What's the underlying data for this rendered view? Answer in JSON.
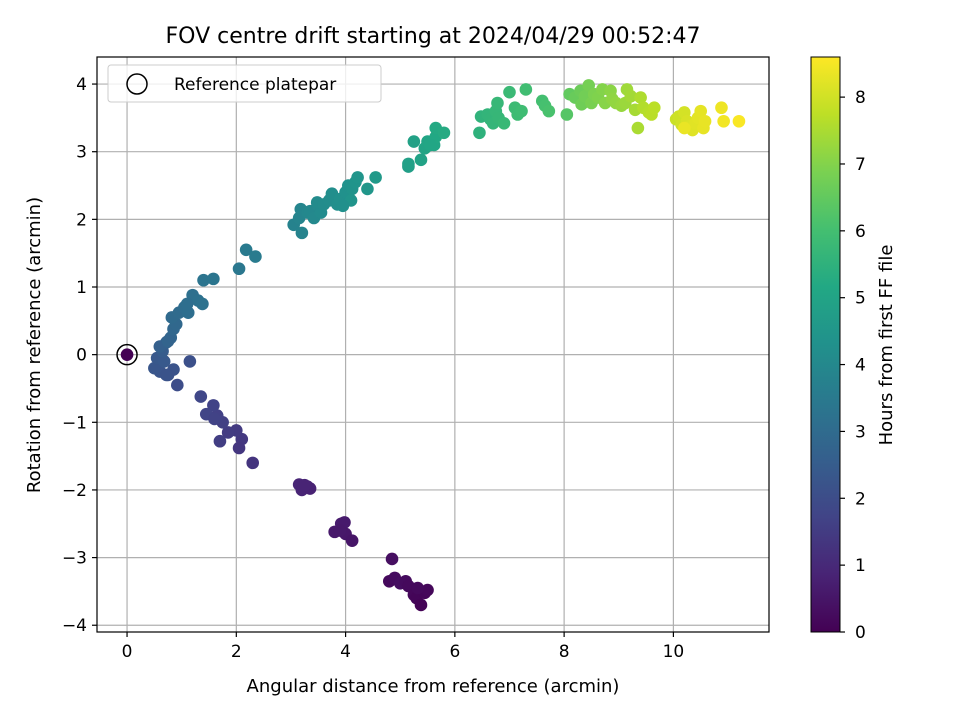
{
  "chart_data": {
    "type": "scatter",
    "title": "FOV centre drift starting at 2024/04/29 00:52:47",
    "xlabel": "Angular distance from reference (arcmin)",
    "ylabel": "Rotation from reference (arcmin)",
    "xlim": [
      -0.55,
      11.75
    ],
    "ylim": [
      -4.1,
      4.4
    ],
    "xticks": [
      0,
      2,
      4,
      6,
      8,
      10
    ],
    "yticks": [
      -4,
      -3,
      -2,
      -1,
      0,
      1,
      2,
      3,
      4
    ],
    "grid": true,
    "legend": {
      "position": "top-left",
      "entries": [
        "Reference platepar"
      ]
    },
    "reference_point": {
      "x": 0,
      "y": 0
    },
    "colorbar": {
      "label": "Hours from first FF file",
      "range": [
        0,
        8.6
      ],
      "ticks": [
        0,
        1,
        2,
        3,
        4,
        5,
        6,
        7,
        8
      ],
      "colormap": "viridis"
    },
    "points": [
      {
        "x": 0,
        "y": 0,
        "h": 0
      },
      {
        "x": 4.85,
        "y": -3.02,
        "h": 0.35
      },
      {
        "x": 4.8,
        "y": -3.35,
        "h": 0.2
      },
      {
        "x": 4.9,
        "y": -3.3,
        "h": 0.25
      },
      {
        "x": 5.0,
        "y": -3.38,
        "h": 0.3
      },
      {
        "x": 5.1,
        "y": -3.35,
        "h": 0.25
      },
      {
        "x": 5.15,
        "y": -3.42,
        "h": 0.2
      },
      {
        "x": 5.25,
        "y": -3.55,
        "h": 0.15
      },
      {
        "x": 5.3,
        "y": -3.6,
        "h": 0.1
      },
      {
        "x": 5.38,
        "y": -3.7,
        "h": 0.05
      },
      {
        "x": 5.45,
        "y": -3.52,
        "h": 0.1
      },
      {
        "x": 5.5,
        "y": -3.48,
        "h": 0.15
      },
      {
        "x": 5.32,
        "y": -3.45,
        "h": 0.2
      },
      {
        "x": 3.8,
        "y": -2.62,
        "h": 0.6
      },
      {
        "x": 3.92,
        "y": -2.5,
        "h": 0.65
      },
      {
        "x": 3.98,
        "y": -2.48,
        "h": 0.62
      },
      {
        "x": 4.0,
        "y": -2.65,
        "h": 0.55
      },
      {
        "x": 4.12,
        "y": -2.75,
        "h": 0.5
      },
      {
        "x": 3.9,
        "y": -2.6,
        "h": 0.58
      },
      {
        "x": 3.15,
        "y": -1.92,
        "h": 0.9
      },
      {
        "x": 3.2,
        "y": -2.0,
        "h": 0.85
      },
      {
        "x": 3.3,
        "y": -1.95,
        "h": 0.88
      },
      {
        "x": 3.35,
        "y": -1.98,
        "h": 0.82
      },
      {
        "x": 3.25,
        "y": -1.93,
        "h": 0.86
      },
      {
        "x": 2.3,
        "y": -1.6,
        "h": 1.3
      },
      {
        "x": 2.1,
        "y": -1.25,
        "h": 1.4
      },
      {
        "x": 2.0,
        "y": -1.12,
        "h": 1.45
      },
      {
        "x": 2.05,
        "y": -1.38,
        "h": 1.35
      },
      {
        "x": 1.85,
        "y": -1.15,
        "h": 1.5
      },
      {
        "x": 1.7,
        "y": -1.28,
        "h": 1.55
      },
      {
        "x": 1.75,
        "y": -1.0,
        "h": 1.6
      },
      {
        "x": 1.65,
        "y": -0.9,
        "h": 1.65
      },
      {
        "x": 1.58,
        "y": -0.75,
        "h": 1.7
      },
      {
        "x": 1.45,
        "y": -0.88,
        "h": 1.75
      },
      {
        "x": 1.35,
        "y": -0.62,
        "h": 1.8
      },
      {
        "x": 1.6,
        "y": -0.95,
        "h": 1.68
      },
      {
        "x": 0.92,
        "y": -0.45,
        "h": 2.0
      },
      {
        "x": 1.15,
        "y": -0.1,
        "h": 2.1
      },
      {
        "x": 0.85,
        "y": -0.22,
        "h": 2.2
      },
      {
        "x": 0.75,
        "y": -0.3,
        "h": 2.15
      },
      {
        "x": 0.6,
        "y": -0.25,
        "h": 2.25
      },
      {
        "x": 0.5,
        "y": -0.2,
        "h": 2.3
      },
      {
        "x": 0.55,
        "y": -0.05,
        "h": 2.35
      },
      {
        "x": 0.68,
        "y": -0.1,
        "h": 2.4
      },
      {
        "x": 0.72,
        "y": -0.3,
        "h": 2.2
      },
      {
        "x": 0.65,
        "y": 0.05,
        "h": 2.5
      },
      {
        "x": 0.72,
        "y": 0.18,
        "h": 2.7
      },
      {
        "x": 0.8,
        "y": 0.25,
        "h": 2.8
      },
      {
        "x": 0.85,
        "y": 0.38,
        "h": 2.85
      },
      {
        "x": 0.9,
        "y": 0.45,
        "h": 2.9
      },
      {
        "x": 0.82,
        "y": 0.55,
        "h": 2.95
      },
      {
        "x": 0.95,
        "y": 0.62,
        "h": 3.0
      },
      {
        "x": 1.05,
        "y": 0.7,
        "h": 3.05
      },
      {
        "x": 1.12,
        "y": 0.62,
        "h": 3.1
      },
      {
        "x": 1.2,
        "y": 0.88,
        "h": 3.15
      },
      {
        "x": 1.3,
        "y": 0.8,
        "h": 3.2
      },
      {
        "x": 1.38,
        "y": 0.75,
        "h": 3.22
      },
      {
        "x": 1.4,
        "y": 1.1,
        "h": 3.3
      },
      {
        "x": 1.58,
        "y": 1.12,
        "h": 3.35
      },
      {
        "x": 1.1,
        "y": 0.75,
        "h": 3.1
      },
      {
        "x": 0.6,
        "y": 0.12,
        "h": 2.6
      },
      {
        "x": 0.75,
        "y": 0.2,
        "h": 2.75
      },
      {
        "x": 2.05,
        "y": 1.27,
        "h": 3.4
      },
      {
        "x": 2.18,
        "y": 1.55,
        "h": 3.5
      },
      {
        "x": 2.35,
        "y": 1.45,
        "h": 3.55
      },
      {
        "x": 3.05,
        "y": 1.92,
        "h": 3.8
      },
      {
        "x": 3.15,
        "y": 2.02,
        "h": 3.85
      },
      {
        "x": 3.2,
        "y": 1.8,
        "h": 3.82
      },
      {
        "x": 3.18,
        "y": 2.15,
        "h": 3.9
      },
      {
        "x": 3.3,
        "y": 2.1,
        "h": 3.95
      },
      {
        "x": 3.35,
        "y": 2.12,
        "h": 4.0
      },
      {
        "x": 3.42,
        "y": 2.02,
        "h": 4.02
      },
      {
        "x": 3.5,
        "y": 2.2,
        "h": 4.05
      },
      {
        "x": 3.55,
        "y": 2.1,
        "h": 4.08
      },
      {
        "x": 3.48,
        "y": 2.25,
        "h": 4.1
      },
      {
        "x": 3.6,
        "y": 2.22,
        "h": 4.12
      },
      {
        "x": 3.7,
        "y": 2.28,
        "h": 4.15
      },
      {
        "x": 3.75,
        "y": 2.38,
        "h": 4.2
      },
      {
        "x": 3.85,
        "y": 2.22,
        "h": 4.22
      },
      {
        "x": 3.9,
        "y": 2.3,
        "h": 4.25
      },
      {
        "x": 4.0,
        "y": 2.4,
        "h": 4.3
      },
      {
        "x": 4.05,
        "y": 2.5,
        "h": 4.35
      },
      {
        "x": 4.12,
        "y": 2.45,
        "h": 4.38
      },
      {
        "x": 4.18,
        "y": 2.55,
        "h": 4.42
      },
      {
        "x": 4.22,
        "y": 2.62,
        "h": 4.45
      },
      {
        "x": 4.1,
        "y": 2.28,
        "h": 4.4
      },
      {
        "x": 4.4,
        "y": 2.45,
        "h": 4.5
      },
      {
        "x": 4.55,
        "y": 2.62,
        "h": 4.6
      },
      {
        "x": 3.95,
        "y": 2.2,
        "h": 4.28
      },
      {
        "x": 5.15,
        "y": 2.78,
        "h": 4.8
      },
      {
        "x": 5.15,
        "y": 2.82,
        "h": 4.85
      },
      {
        "x": 5.25,
        "y": 3.15,
        "h": 4.9
      },
      {
        "x": 5.38,
        "y": 2.88,
        "h": 4.95
      },
      {
        "x": 5.45,
        "y": 3.05,
        "h": 5.0
      },
      {
        "x": 5.5,
        "y": 3.15,
        "h": 5.05
      },
      {
        "x": 5.62,
        "y": 3.1,
        "h": 5.1
      },
      {
        "x": 5.65,
        "y": 3.22,
        "h": 5.15
      },
      {
        "x": 5.65,
        "y": 3.35,
        "h": 5.2
      },
      {
        "x": 5.8,
        "y": 3.28,
        "h": 5.25
      },
      {
        "x": 5.55,
        "y": 3.1,
        "h": 5.08
      },
      {
        "x": 6.45,
        "y": 3.28,
        "h": 5.5
      },
      {
        "x": 6.48,
        "y": 3.52,
        "h": 5.55
      },
      {
        "x": 6.6,
        "y": 3.55,
        "h": 5.6
      },
      {
        "x": 6.65,
        "y": 3.48,
        "h": 5.62
      },
      {
        "x": 6.7,
        "y": 3.42,
        "h": 5.65
      },
      {
        "x": 6.75,
        "y": 3.6,
        "h": 5.68
      },
      {
        "x": 6.8,
        "y": 3.5,
        "h": 5.7
      },
      {
        "x": 6.78,
        "y": 3.72,
        "h": 5.72
      },
      {
        "x": 6.9,
        "y": 3.42,
        "h": 5.75
      },
      {
        "x": 7.0,
        "y": 3.88,
        "h": 5.8
      },
      {
        "x": 7.1,
        "y": 3.65,
        "h": 5.85
      },
      {
        "x": 7.15,
        "y": 3.55,
        "h": 5.88
      },
      {
        "x": 7.22,
        "y": 3.6,
        "h": 5.9
      },
      {
        "x": 7.3,
        "y": 3.92,
        "h": 5.95
      },
      {
        "x": 7.6,
        "y": 3.75,
        "h": 6.0
      },
      {
        "x": 7.65,
        "y": 3.68,
        "h": 6.05
      },
      {
        "x": 7.72,
        "y": 3.6,
        "h": 6.1
      },
      {
        "x": 8.05,
        "y": 3.55,
        "h": 6.3
      },
      {
        "x": 8.1,
        "y": 3.85,
        "h": 6.5
      },
      {
        "x": 8.2,
        "y": 3.8,
        "h": 6.6
      },
      {
        "x": 8.3,
        "y": 3.9,
        "h": 6.65
      },
      {
        "x": 8.32,
        "y": 3.7,
        "h": 6.7
      },
      {
        "x": 8.38,
        "y": 3.82,
        "h": 6.75
      },
      {
        "x": 8.45,
        "y": 3.98,
        "h": 6.8
      },
      {
        "x": 8.5,
        "y": 3.72,
        "h": 6.85
      },
      {
        "x": 8.55,
        "y": 3.85,
        "h": 6.9
      },
      {
        "x": 8.62,
        "y": 3.8,
        "h": 6.95
      },
      {
        "x": 8.7,
        "y": 3.92,
        "h": 7.0
      },
      {
        "x": 8.75,
        "y": 3.72,
        "h": 7.05
      },
      {
        "x": 8.85,
        "y": 3.9,
        "h": 7.1
      },
      {
        "x": 8.88,
        "y": 3.78,
        "h": 7.15
      },
      {
        "x": 8.95,
        "y": 3.72,
        "h": 7.2
      },
      {
        "x": 9.05,
        "y": 3.68,
        "h": 7.25
      },
      {
        "x": 9.12,
        "y": 3.72,
        "h": 7.3
      },
      {
        "x": 9.15,
        "y": 3.92,
        "h": 7.35
      },
      {
        "x": 9.22,
        "y": 3.82,
        "h": 7.4
      },
      {
        "x": 9.3,
        "y": 3.62,
        "h": 7.45
      },
      {
        "x": 9.35,
        "y": 3.35,
        "h": 7.5
      },
      {
        "x": 9.4,
        "y": 3.8,
        "h": 7.55
      },
      {
        "x": 9.45,
        "y": 3.65,
        "h": 7.6
      },
      {
        "x": 9.55,
        "y": 3.58,
        "h": 7.65
      },
      {
        "x": 9.6,
        "y": 3.55,
        "h": 7.7
      },
      {
        "x": 9.65,
        "y": 3.65,
        "h": 7.72
      },
      {
        "x": 10.05,
        "y": 3.48,
        "h": 7.9
      },
      {
        "x": 10.1,
        "y": 3.52,
        "h": 7.95
      },
      {
        "x": 10.15,
        "y": 3.4,
        "h": 8.0
      },
      {
        "x": 10.2,
        "y": 3.58,
        "h": 8.05
      },
      {
        "x": 10.25,
        "y": 3.45,
        "h": 8.1
      },
      {
        "x": 10.3,
        "y": 3.38,
        "h": 8.15
      },
      {
        "x": 10.35,
        "y": 3.32,
        "h": 8.2
      },
      {
        "x": 10.4,
        "y": 3.42,
        "h": 8.22
      },
      {
        "x": 10.45,
        "y": 3.5,
        "h": 8.25
      },
      {
        "x": 10.5,
        "y": 3.6,
        "h": 8.28
      },
      {
        "x": 10.55,
        "y": 3.35,
        "h": 8.3
      },
      {
        "x": 10.58,
        "y": 3.45,
        "h": 8.32
      },
      {
        "x": 10.2,
        "y": 3.35,
        "h": 8.35
      },
      {
        "x": 10.88,
        "y": 3.65,
        "h": 8.4
      },
      {
        "x": 10.92,
        "y": 3.45,
        "h": 8.45
      },
      {
        "x": 11.2,
        "y": 3.45,
        "h": 8.55
      }
    ]
  }
}
